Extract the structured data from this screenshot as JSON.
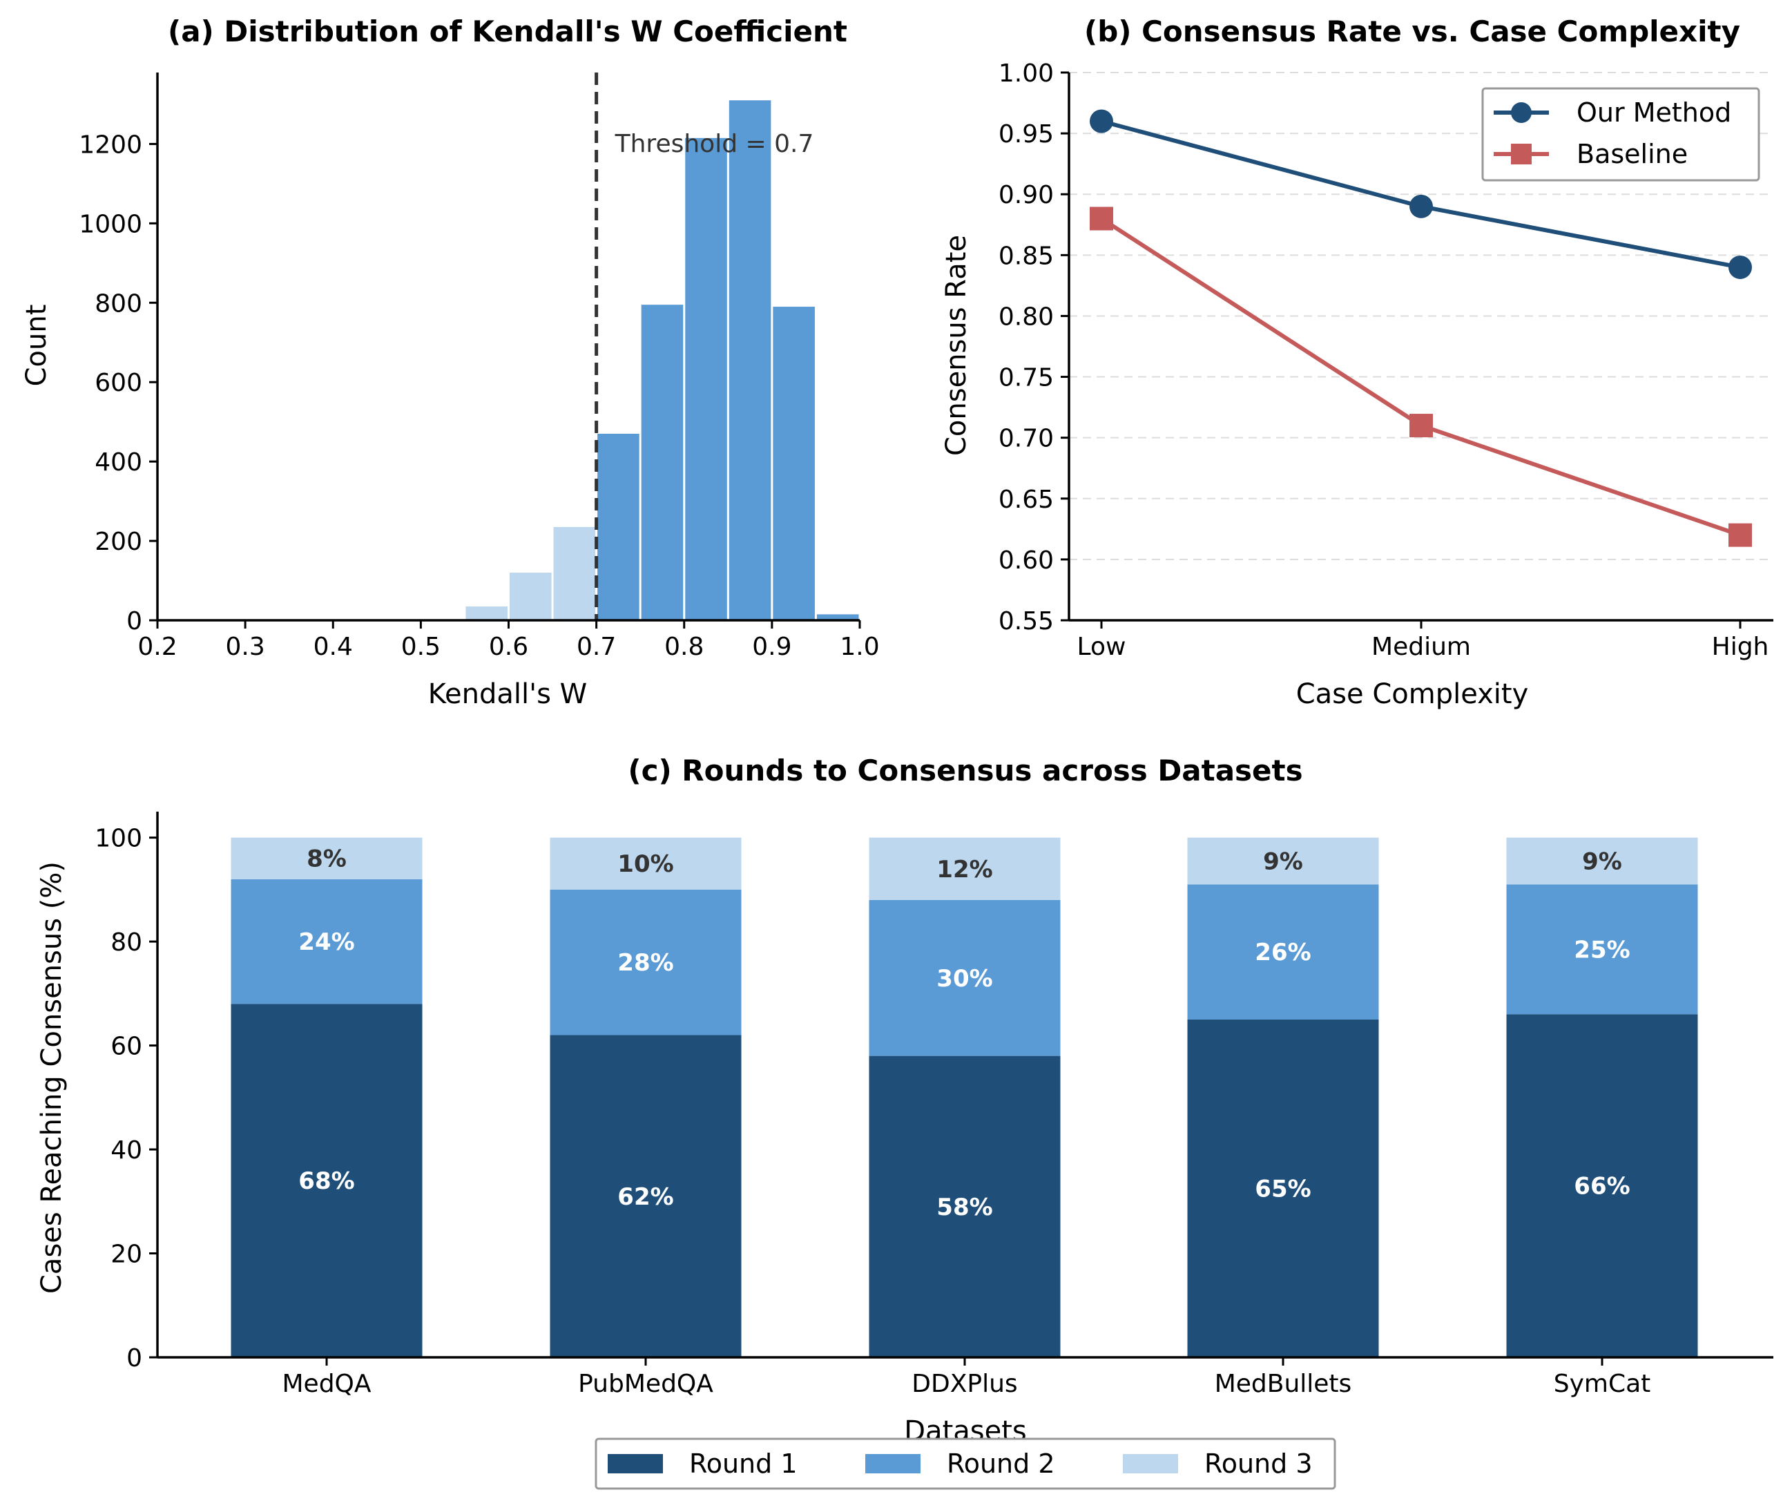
{
  "colors": {
    "dark_blue": "#1f4e79",
    "mid_blue": "#5b9bd5",
    "light_blue": "#bdd7ee",
    "baseline_red": "#c55a5a",
    "threshold_line": "#333333",
    "grid": "#dddddd"
  },
  "chart_data": [
    {
      "id": "a",
      "type": "bar",
      "title": "(a) Distribution of Kendall's W Coefficient",
      "xlabel": "Kendall's W",
      "ylabel": "Count",
      "xlim": [
        0.2,
        1.0
      ],
      "ylim": [
        0,
        1380
      ],
      "xticks": [
        "0.2",
        "0.3",
        "0.4",
        "0.5",
        "0.6",
        "0.7",
        "0.8",
        "0.9",
        "1.0"
      ],
      "yticks": [
        "0",
        "200",
        "400",
        "600",
        "800",
        "1000",
        "1200"
      ],
      "bin_width": 0.05,
      "bins": [
        {
          "x0": 0.55,
          "count": 35,
          "above_threshold": false
        },
        {
          "x0": 0.6,
          "count": 120,
          "above_threshold": false
        },
        {
          "x0": 0.65,
          "count": 235,
          "above_threshold": false
        },
        {
          "x0": 0.7,
          "count": 470,
          "above_threshold": true
        },
        {
          "x0": 0.75,
          "count": 795,
          "above_threshold": true
        },
        {
          "x0": 0.8,
          "count": 1215,
          "above_threshold": true
        },
        {
          "x0": 0.85,
          "count": 1310,
          "above_threshold": true
        },
        {
          "x0": 0.9,
          "count": 790,
          "above_threshold": true
        },
        {
          "x0": 0.95,
          "count": 15,
          "above_threshold": true
        }
      ],
      "threshold": 0.7,
      "threshold_label": "Threshold = 0.7"
    },
    {
      "id": "b",
      "type": "line",
      "title": "(b) Consensus Rate vs. Case Complexity",
      "xlabel": "Case Complexity",
      "ylabel": "Consensus Rate",
      "categories": [
        "Low",
        "Medium",
        "High"
      ],
      "ylim": [
        0.55,
        1.0
      ],
      "yticks": [
        "0.55",
        "0.60",
        "0.65",
        "0.70",
        "0.75",
        "0.80",
        "0.85",
        "0.90",
        "0.95",
        "1.00"
      ],
      "grid": "horizontal dashed",
      "legend_position": "top-right",
      "series": [
        {
          "name": "Our Method",
          "values": [
            0.96,
            0.89,
            0.84
          ],
          "marker": "circle"
        },
        {
          "name": "Baseline",
          "values": [
            0.88,
            0.71,
            0.62
          ],
          "marker": "square"
        }
      ]
    },
    {
      "id": "c",
      "type": "bar",
      "stacked": true,
      "title": "(c) Rounds to Consensus across Datasets",
      "xlabel": "Datasets",
      "ylabel": "Cases Reaching Consensus (%)",
      "categories": [
        "MedQA",
        "PubMedQA",
        "DDXPlus",
        "MedBullets",
        "SymCat"
      ],
      "ylim": [
        0,
        105
      ],
      "yticks": [
        "0",
        "20",
        "40",
        "60",
        "80",
        "100"
      ],
      "legend_position": "bottom-center",
      "series": [
        {
          "name": "Round 1",
          "values": [
            68,
            62,
            58,
            65,
            66
          ],
          "labels": [
            "68%",
            "62%",
            "58%",
            "65%",
            "66%"
          ]
        },
        {
          "name": "Round 2",
          "values": [
            24,
            28,
            30,
            26,
            25
          ],
          "labels": [
            "24%",
            "28%",
            "30%",
            "26%",
            "25%"
          ]
        },
        {
          "name": "Round 3",
          "values": [
            8,
            10,
            12,
            9,
            9
          ],
          "labels": [
            "8%",
            "10%",
            "12%",
            "9%",
            "9%"
          ]
        }
      ]
    }
  ]
}
